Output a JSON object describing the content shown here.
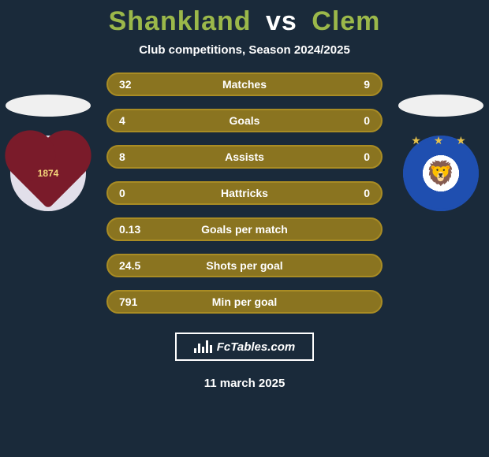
{
  "title": {
    "player1": "Shankland",
    "vs": "vs",
    "player2": "Clem",
    "fontsize": 34,
    "color_player1": "#9bb84a",
    "color_vs": "#ffffff",
    "color_player2": "#9bb84a"
  },
  "subtitle": {
    "text": "Club competitions, Season 2024/2025",
    "fontsize": 15,
    "color": "#ffffff"
  },
  "background_color": "#1a2a3a",
  "stats": {
    "pill": {
      "border_color": "#a98c24",
      "fill_color": "#8a7420",
      "text_color": "#ffffff",
      "fontsize": 14,
      "height": 30,
      "radius": 20
    },
    "rows": [
      {
        "left": "32",
        "label": "Matches",
        "right": "9"
      },
      {
        "left": "4",
        "label": "Goals",
        "right": "0"
      },
      {
        "left": "8",
        "label": "Assists",
        "right": "0"
      },
      {
        "left": "0",
        "label": "Hattricks",
        "right": "0"
      },
      {
        "left": "0.13",
        "label": "Goals per match",
        "right": ""
      },
      {
        "left": "24.5",
        "label": "Shots per goal",
        "right": ""
      },
      {
        "left": "791",
        "label": "Min per goal",
        "right": ""
      }
    ]
  },
  "player1_club": {
    "name": "Hearts",
    "badge_year": "1874",
    "badge_bg": "#e2dfea",
    "heart_color": "#7a1b2a",
    "year_color": "#f4d57a"
  },
  "player2_club": {
    "name": "FC København",
    "ring_color": "#1f4fb0",
    "inner_bg": "#ffffff",
    "star_color": "#e6c14a",
    "stars": "★ ★ ★"
  },
  "brand": {
    "text": "FcTables.com",
    "border_color": "#ffffff",
    "fontsize": 15
  },
  "date": {
    "text": "11 march 2025",
    "fontsize": 15,
    "color": "#ffffff"
  }
}
